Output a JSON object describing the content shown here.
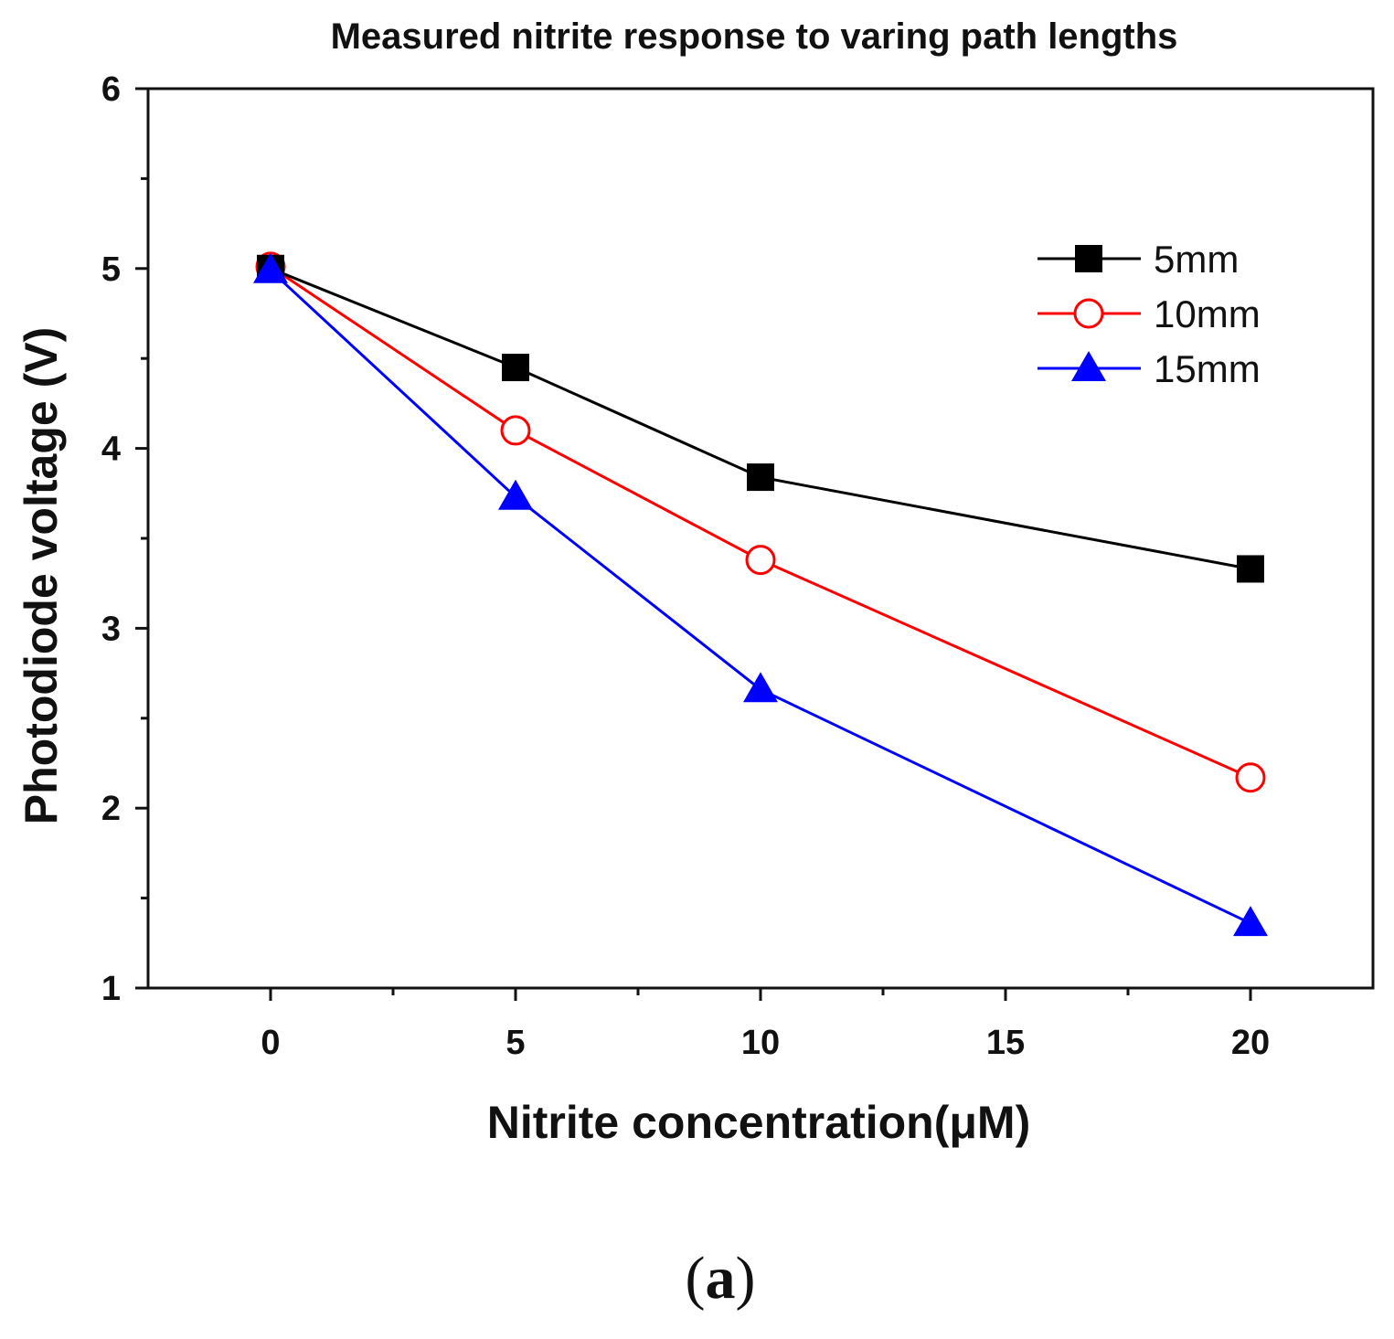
{
  "chart_data": {
    "type": "line",
    "title": "Measured nitrite response to varing path lengths",
    "xlabel": "Nitrite concentration(μM)",
    "ylabel": "Photodiode voltage (V)",
    "xlim": [
      -2.5,
      22.5
    ],
    "ylim": [
      1,
      6
    ],
    "x_ticks": [
      0,
      5,
      10,
      15,
      20
    ],
    "y_ticks": [
      1,
      2,
      3,
      4,
      5,
      6
    ],
    "grid": false,
    "legend_position": "top-right",
    "series": [
      {
        "name": "5mm",
        "color": "#000000",
        "marker": "square-filled",
        "x": [
          0,
          5,
          10,
          20
        ],
        "y": [
          5.0,
          4.45,
          3.84,
          3.33
        ]
      },
      {
        "name": "10mm",
        "color": "#ff0000",
        "marker": "circle-open",
        "x": [
          0,
          5,
          10,
          20
        ],
        "y": [
          5.01,
          4.1,
          3.38,
          2.17
        ]
      },
      {
        "name": "15mm",
        "color": "#0000ff",
        "marker": "triangle-filled",
        "x": [
          0,
          5,
          10,
          20
        ],
        "y": [
          4.99,
          3.73,
          2.66,
          1.36
        ]
      }
    ]
  },
  "panel_label": {
    "open": "(",
    "letter": "a",
    "close": ")"
  }
}
